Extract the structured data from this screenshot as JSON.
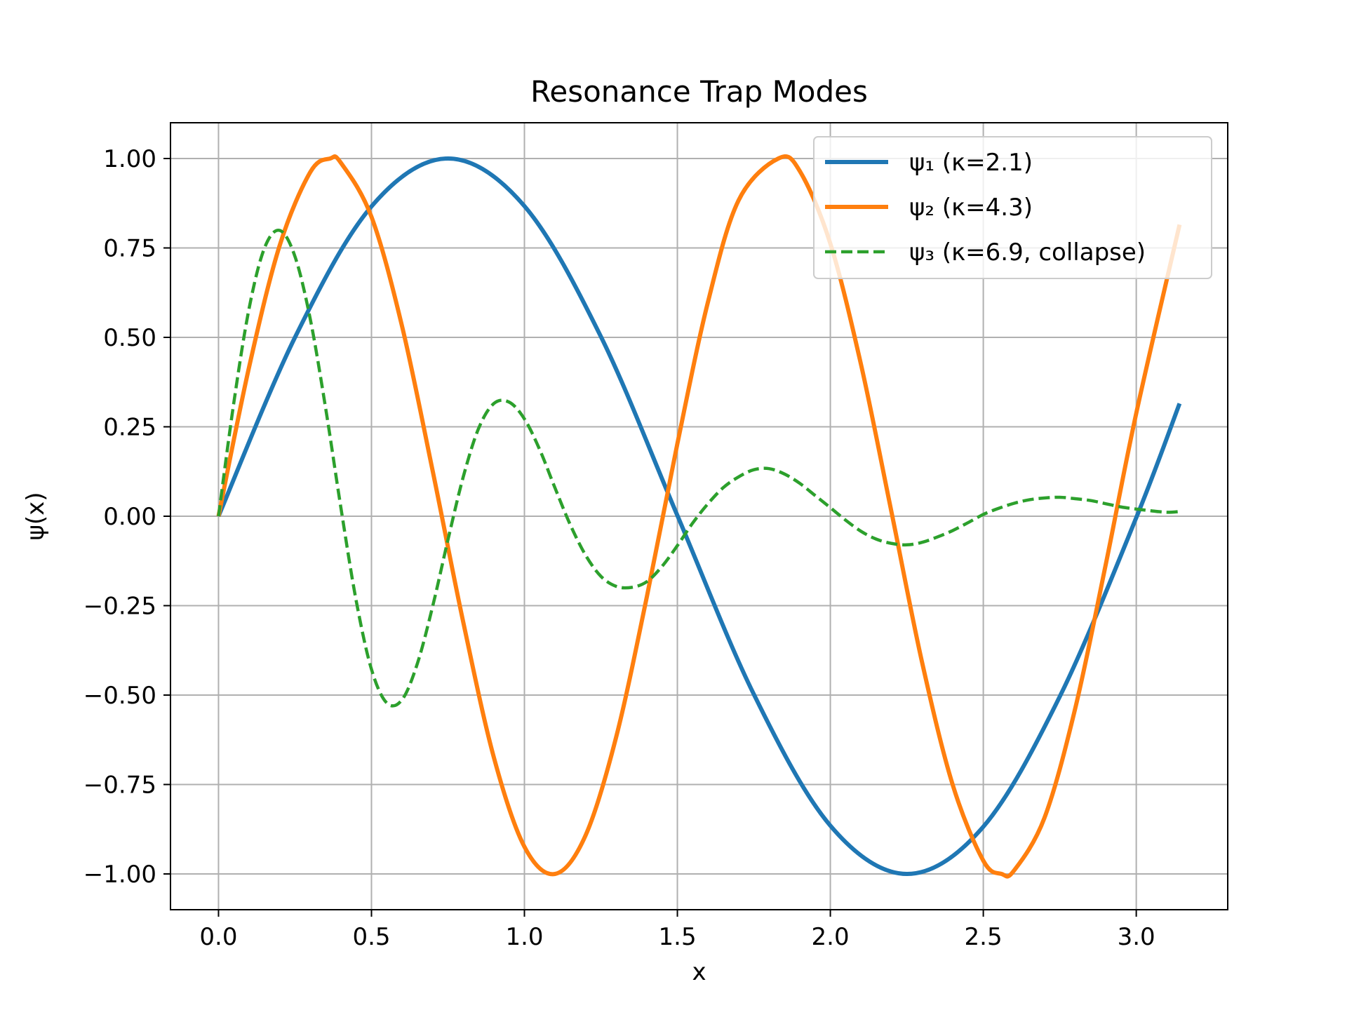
{
  "chart_data": {
    "type": "line",
    "title": "Resonance Trap Modes",
    "xlabel": "x",
    "ylabel": "ψ(x)",
    "xlim": [
      -0.157,
      3.299
    ],
    "ylim": [
      -1.1,
      1.1
    ],
    "grid": true,
    "legend_position": "top-right",
    "x_ticks": [
      0.0,
      0.5,
      1.0,
      1.5,
      2.0,
      2.5,
      3.0
    ],
    "x_tick_labels": [
      "0.0",
      "0.5",
      "1.0",
      "1.5",
      "2.0",
      "2.5",
      "3.0"
    ],
    "y_ticks": [
      1.0,
      0.75,
      0.5,
      0.25,
      0.0,
      -0.25,
      -0.5,
      -0.75,
      -1.0
    ],
    "y_tick_labels": [
      "1.00",
      "0.75",
      "0.50",
      "0.25",
      "0.00",
      "−0.25",
      "−0.50",
      "−0.75",
      "−1.00"
    ],
    "series": [
      {
        "name": "ψ₁ (κ=2.1)",
        "color": "#1f77b4",
        "style": "solid",
        "x": [
          0.0,
          0.25,
          0.5,
          0.75,
          1.0,
          1.25,
          1.5,
          1.75,
          2.0,
          2.25,
          2.5,
          2.75,
          3.0,
          3.1416
        ],
        "y": [
          0.0,
          0.5,
          0.866,
          1.0,
          0.867,
          0.502,
          0.002,
          -0.498,
          -0.865,
          -1.0,
          -0.868,
          -0.504,
          -0.004,
          0.315
        ]
      },
      {
        "name": "ψ₂ (κ=4.3)",
        "color": "#ff7f0e",
        "style": "solid",
        "x": [
          0.0,
          0.1,
          0.2,
          0.3,
          0.365,
          0.4,
          0.5,
          0.6,
          0.7,
          0.8,
          0.9,
          1.0,
          1.1,
          1.2,
          1.3,
          1.4,
          1.5,
          1.6,
          1.7,
          1.83,
          1.9,
          2.0,
          2.1,
          2.2,
          2.3,
          2.4,
          2.5,
          2.56,
          2.6,
          2.7,
          2.8,
          2.9,
          3.0,
          3.1416
        ],
        "y": [
          0.0,
          0.417,
          0.757,
          0.962,
          1.0,
          0.988,
          0.837,
          0.531,
          0.127,
          -0.296,
          -0.674,
          -0.924,
          -1.0,
          -0.892,
          -0.617,
          -0.226,
          0.203,
          0.599,
          0.883,
          1.0,
          0.965,
          0.762,
          0.425,
          0.011,
          -0.409,
          -0.751,
          -0.963,
          -1.0,
          -0.991,
          -0.843,
          -0.539,
          -0.136,
          0.288,
          0.815
        ]
      },
      {
        "name": "ψ₃ (κ=6.9, collapse)",
        "color": "#2ca02c",
        "style": "dashed",
        "x": [
          0.0,
          0.05,
          0.1,
          0.15,
          0.2,
          0.25,
          0.3,
          0.35,
          0.4,
          0.45,
          0.5,
          0.55,
          0.6,
          0.65,
          0.7,
          0.75,
          0.8,
          0.85,
          0.9,
          0.95,
          1.0,
          1.05,
          1.1,
          1.15,
          1.2,
          1.25,
          1.3,
          1.35,
          1.4,
          1.45,
          1.5,
          1.55,
          1.6,
          1.65,
          1.7,
          1.75,
          1.8,
          1.85,
          1.9,
          1.95,
          2.0,
          2.05,
          2.1,
          2.15,
          2.2,
          2.25,
          2.3,
          2.35,
          2.4,
          2.45,
          2.5,
          2.55,
          2.6,
          2.65,
          2.7,
          2.75,
          2.8,
          2.85,
          2.9,
          2.95,
          3.0,
          3.05,
          3.1,
          3.1416
        ],
        "y": [
          0.0,
          0.317,
          0.581,
          0.749,
          0.799,
          0.726,
          0.551,
          0.303,
          0.024,
          -0.236,
          -0.428,
          -0.522,
          -0.513,
          -0.412,
          -0.252,
          -0.066,
          0.11,
          0.245,
          0.315,
          0.319,
          0.272,
          0.186,
          0.079,
          -0.024,
          -0.109,
          -0.168,
          -0.196,
          -0.199,
          -0.183,
          -0.14,
          -0.082,
          -0.019,
          0.035,
          0.08,
          0.11,
          0.13,
          0.133,
          0.118,
          0.092,
          0.058,
          0.024,
          -0.011,
          -0.042,
          -0.064,
          -0.076,
          -0.08,
          -0.073,
          -0.058,
          -0.04,
          -0.018,
          0.005,
          0.022,
          0.036,
          0.046,
          0.051,
          0.053,
          0.049,
          0.044,
          0.035,
          0.026,
          0.02,
          0.015,
          0.011,
          0.013
        ]
      }
    ]
  }
}
